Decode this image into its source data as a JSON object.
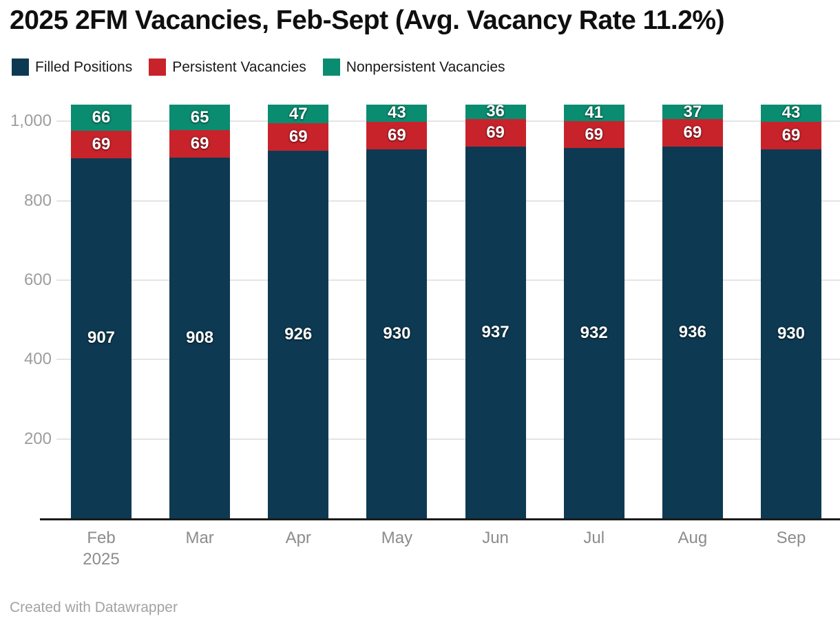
{
  "title": "2025 2FM Vacancies, Feb-Sept (Avg. Vacancy Rate 11.2%)",
  "footer": "Created with Datawrapper",
  "colors": {
    "filled": "#0d3a52",
    "persistent": "#c8232b",
    "nonpersistent": "#0a8c70",
    "gridline": "#e4e4e4",
    "axis_line": "#1a1a1a",
    "ytick_text": "#9d9d9d",
    "xtick_text": "#8c8c8c"
  },
  "legend": [
    {
      "label": "Filled Positions",
      "color": "#0d3a52"
    },
    {
      "label": "Persistent Vacancies",
      "color": "#c8232b"
    },
    {
      "label": "Nonpersistent Vacancies",
      "color": "#0a8c70"
    }
  ],
  "chart_data": {
    "type": "bar",
    "stacked": true,
    "title": "2025 2FM Vacancies, Feb-Sept (Avg. Vacancy Rate 11.2%)",
    "categories": [
      "Feb",
      "Mar",
      "Apr",
      "May",
      "Jun",
      "Jul",
      "Aug",
      "Sep"
    ],
    "category_sublabels": [
      "2025",
      "",
      "",
      "",
      "",
      "",
      "",
      ""
    ],
    "series": [
      {
        "name": "Filled Positions",
        "color": "#0d3a52",
        "values": [
          907,
          908,
          926,
          930,
          937,
          932,
          936,
          930
        ]
      },
      {
        "name": "Persistent Vacancies",
        "color": "#c8232b",
        "values": [
          69,
          69,
          69,
          69,
          69,
          69,
          69,
          69
        ]
      },
      {
        "name": "Nonpersistent Vacancies",
        "color": "#0a8c70",
        "values": [
          66,
          65,
          47,
          43,
          36,
          41,
          37,
          43
        ]
      }
    ],
    "totals": [
      1042,
      1042,
      1042,
      1042,
      1042,
      1042,
      1042,
      1042
    ],
    "xlabel": "",
    "ylabel": "",
    "ylim": [
      0,
      1042
    ],
    "yticks": [
      200,
      400,
      600,
      800,
      1000
    ],
    "ytick_labels": [
      "200",
      "400",
      "600",
      "800",
      "1,000"
    ],
    "grid": true,
    "legend_position": "top",
    "data_labels": "inside-white"
  }
}
